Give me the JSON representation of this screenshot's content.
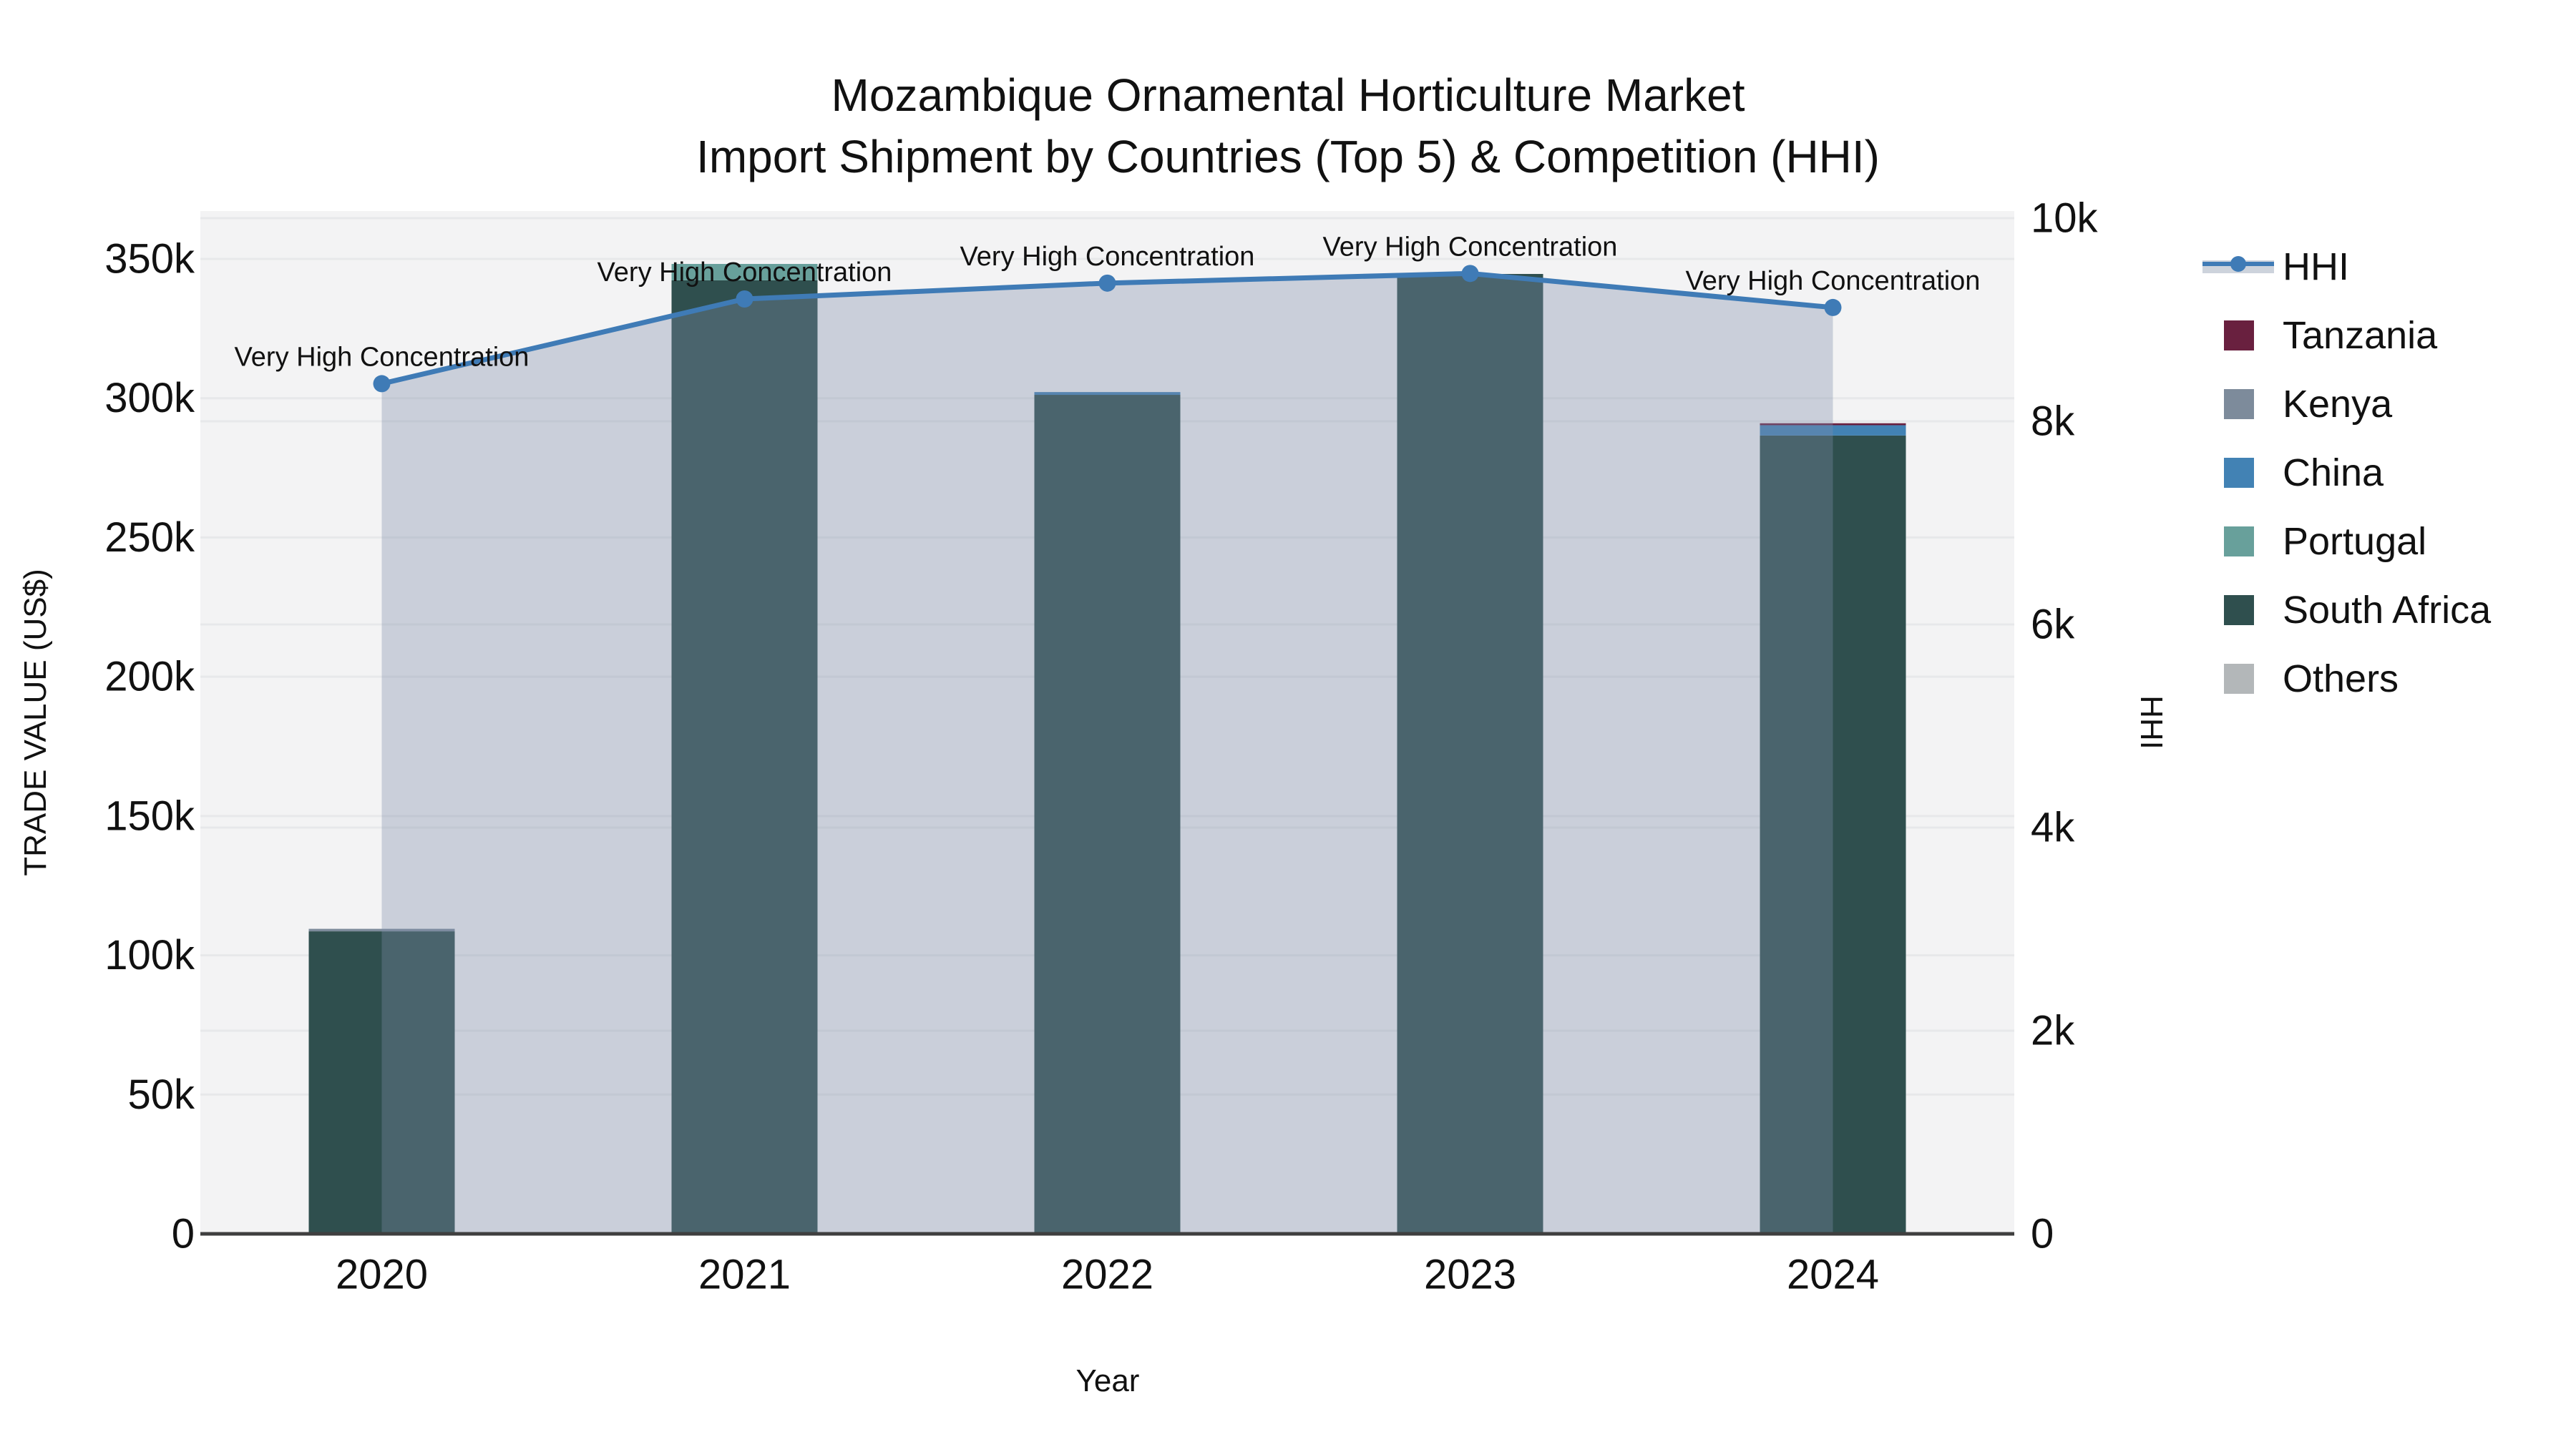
{
  "title": {
    "line1": "Mozambique Ornamental Horticulture Market",
    "line2": "Import Shipment by Countries (Top 5) & Competition (HHI)"
  },
  "axis_titles": {
    "left": "TRADE VALUE (US$)",
    "bottom": "Year",
    "right": "HHI"
  },
  "colors": {
    "plot_bg": "#f3f3f4",
    "grid": "#e7e8ea",
    "axis_line": "#3f3f3f",
    "hhi_line": "#3f7bb6",
    "hhi_fill": "rgba(125,140,170,0.35)",
    "hhi_legend_band": "#cdd3dc",
    "text": "#111111"
  },
  "legend": {
    "items": [
      {
        "label": "HHI",
        "swatch": "line",
        "color": "#3f7bb6"
      },
      {
        "label": "Tanzania",
        "swatch": "square",
        "color": "#69203f"
      },
      {
        "label": "Kenya",
        "swatch": "square",
        "color": "#7d8b9b"
      },
      {
        "label": "China",
        "swatch": "square",
        "color": "#4282b4"
      },
      {
        "label": "Portugal",
        "swatch": "square",
        "color": "#68a09b"
      },
      {
        "label": "South Africa",
        "swatch": "square",
        "color": "#2f4f4e"
      },
      {
        "label": "Others",
        "swatch": "square",
        "color": "#b3b7b9"
      }
    ]
  },
  "chart_data": {
    "type": "bar+line",
    "categories": [
      "2020",
      "2021",
      "2022",
      "2023",
      "2024"
    ],
    "bar_series": [
      {
        "name": "Tanzania",
        "color": "#69203f",
        "values": [
          0,
          0,
          0,
          0,
          700
        ]
      },
      {
        "name": "Kenya",
        "color": "#7d8b9b",
        "values": [
          900,
          0,
          0,
          0,
          0
        ]
      },
      {
        "name": "China",
        "color": "#4282b4",
        "values": [
          0,
          0,
          1000,
          0,
          3700
        ]
      },
      {
        "name": "Portugal",
        "color": "#68a09b",
        "values": [
          0,
          5900,
          0,
          0,
          0
        ]
      },
      {
        "name": "South Africa",
        "color": "#2f4f4e",
        "values": [
          108600,
          342300,
          301200,
          344600,
          286600
        ]
      },
      {
        "name": "Others",
        "color": "#b3b7b9",
        "values": [
          0,
          0,
          0,
          0,
          0
        ]
      }
    ],
    "bar_totals": [
      109500,
      348200,
      302200,
      344600,
      291000
    ],
    "stack_order_bottom_to_top": [
      "Others",
      "South Africa",
      "Portugal",
      "China",
      "Kenya",
      "Tanzania"
    ],
    "line_series": {
      "name": "HHI",
      "axis": "right",
      "values": [
        8370,
        9204,
        9360,
        9455,
        9120
      ]
    },
    "annotations": {
      "text": "Very High Concentration"
    },
    "xlabel": "Year",
    "ylabel_left": "TRADE VALUE (US$)",
    "ylabel_right": "HHI",
    "ylim_left": [
      0,
      367200
    ],
    "ylim_right": [
      0,
      10070
    ],
    "y_left_ticks": {
      "values": [
        0,
        50000,
        100000,
        150000,
        200000,
        250000,
        300000,
        350000
      ],
      "labels": [
        "0",
        "50k",
        "100k",
        "150k",
        "200k",
        "250k",
        "300k",
        "350k"
      ]
    },
    "y_right_ticks": {
      "values": [
        0,
        2000,
        4000,
        6000,
        8000,
        10000
      ],
      "labels": [
        "0",
        "2k",
        "4k",
        "6k",
        "8k",
        "10k"
      ]
    },
    "grid": true,
    "legend_position": "right"
  }
}
